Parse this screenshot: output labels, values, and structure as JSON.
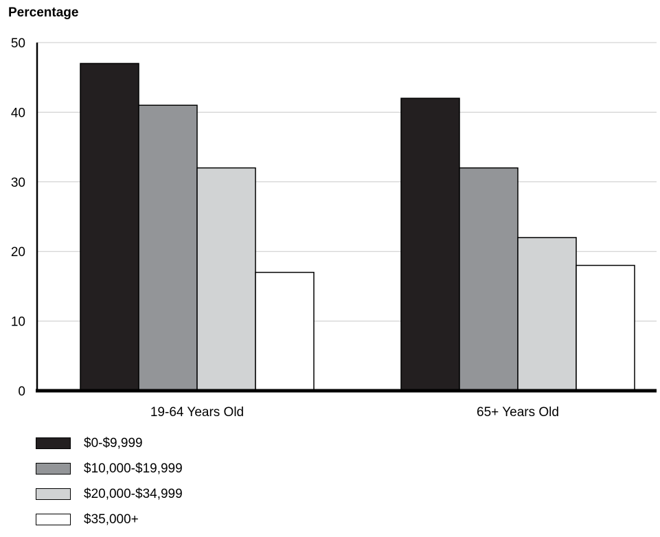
{
  "chart_data": {
    "type": "bar",
    "categories": [
      "19-64 Years Old",
      "65+ Years Old"
    ],
    "series": [
      {
        "name": "$0-$9,999",
        "color": "#231f20",
        "values": [
          47,
          42
        ]
      },
      {
        "name": "$10,000-$19,999",
        "color": "#939598",
        "values": [
          41,
          32
        ]
      },
      {
        "name": "$20,000-$34,999",
        "color": "#d1d3d4",
        "values": [
          32,
          22
        ]
      },
      {
        "name": "$35,000+",
        "color": "#ffffff",
        "values": [
          17,
          18
        ]
      }
    ],
    "ylabel": "Percentage",
    "xlabel": "",
    "ylim": [
      0,
      50
    ],
    "yticks": [
      0,
      10,
      20,
      30,
      40,
      50
    ],
    "grid": true,
    "legend": "bottom-left"
  }
}
